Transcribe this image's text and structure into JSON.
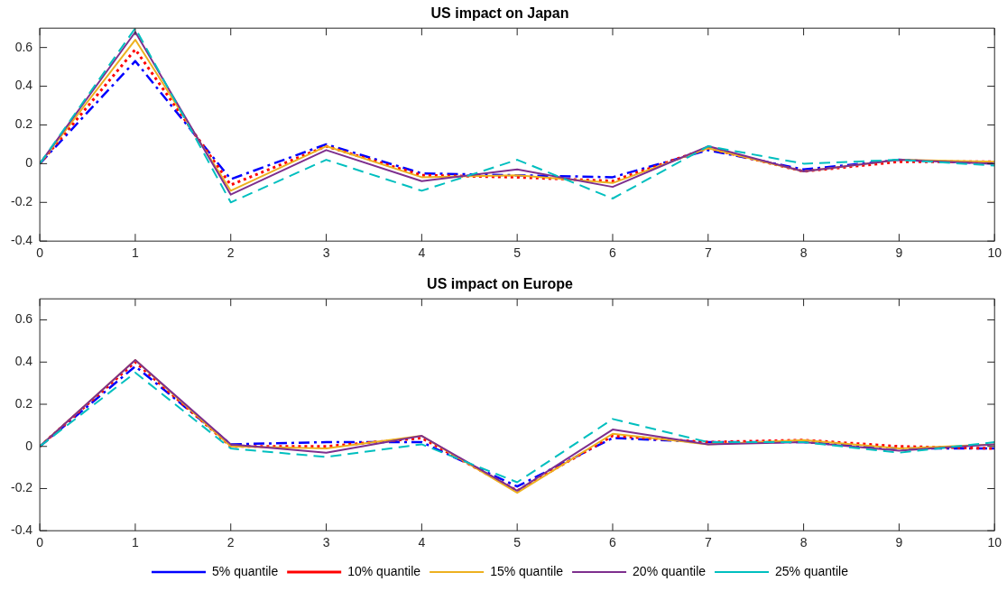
{
  "chart_data": [
    {
      "type": "line",
      "title": "US impact on Japan",
      "x": [
        0,
        1,
        2,
        3,
        4,
        5,
        6,
        7,
        8,
        9,
        10
      ],
      "xlim": [
        0,
        10
      ],
      "xticks": [
        0,
        1,
        2,
        3,
        4,
        5,
        6,
        7,
        8,
        9,
        10
      ],
      "ylim": [
        -0.4,
        0.7
      ],
      "yticks": [
        -0.4,
        -0.2,
        0,
        0.2,
        0.4,
        0.6
      ],
      "grid": false,
      "legend": false,
      "marker": "none",
      "series": [
        {
          "color": "#0000ff",
          "line_style": "dashdot",
          "values": [
            0,
            0.53,
            -0.08,
            0.1,
            -0.05,
            -0.06,
            -0.07,
            0.07,
            -0.03,
            0.02,
            0.0
          ]
        },
        {
          "color": "#ff0000",
          "line_style": "dotted",
          "values": [
            0,
            0.59,
            -0.11,
            0.09,
            -0.06,
            -0.07,
            -0.09,
            0.08,
            -0.04,
            0.01,
            0.01
          ]
        },
        {
          "color": "#edb120",
          "line_style": "solid",
          "values": [
            0,
            0.64,
            -0.14,
            0.09,
            -0.07,
            -0.06,
            -0.1,
            0.08,
            -0.04,
            0.02,
            0.01
          ]
        },
        {
          "color": "#7e2f8e",
          "line_style": "solid",
          "values": [
            0,
            0.68,
            -0.16,
            0.07,
            -0.09,
            -0.03,
            -0.12,
            0.09,
            -0.04,
            0.02,
            0.0
          ]
        },
        {
          "color": "#00bfbf",
          "line_style": "dashed",
          "values": [
            0,
            0.7,
            -0.2,
            0.02,
            -0.14,
            0.02,
            -0.18,
            0.09,
            0.0,
            0.02,
            -0.01
          ]
        }
      ]
    },
    {
      "type": "line",
      "title": "US impact on Europe",
      "x": [
        0,
        1,
        2,
        3,
        4,
        5,
        6,
        7,
        8,
        9,
        10
      ],
      "xlim": [
        0,
        10
      ],
      "xticks": [
        0,
        1,
        2,
        3,
        4,
        5,
        6,
        7,
        8,
        9,
        10
      ],
      "ylim": [
        -0.4,
        0.7
      ],
      "yticks": [
        -0.4,
        -0.2,
        0,
        0.2,
        0.4,
        0.6
      ],
      "grid": false,
      "legend": "bottom",
      "marker": "none",
      "series": [
        {
          "name": "5% quantile",
          "color": "#0000ff",
          "line_style": "dashdot",
          "values": [
            0,
            0.38,
            0.01,
            0.02,
            0.02,
            -0.19,
            0.04,
            0.02,
            0.02,
            -0.01,
            -0.01
          ]
        },
        {
          "name": "10% quantile",
          "color": "#ff0000",
          "line_style": "dotted",
          "values": [
            0,
            0.4,
            0.0,
            0.0,
            0.04,
            -0.21,
            0.05,
            0.02,
            0.03,
            0.0,
            -0.01
          ]
        },
        {
          "name": "15% quantile",
          "color": "#edb120",
          "line_style": "solid",
          "values": [
            0,
            0.41,
            0.0,
            -0.01,
            0.05,
            -0.22,
            0.06,
            0.01,
            0.03,
            -0.01,
            0.01
          ]
        },
        {
          "name": "20% quantile",
          "color": "#7e2f8e",
          "line_style": "solid",
          "values": [
            0,
            0.41,
            0.01,
            -0.03,
            0.05,
            -0.21,
            0.08,
            0.01,
            0.02,
            -0.02,
            0.01
          ]
        },
        {
          "name": "25% quantile",
          "color": "#00bfbf",
          "line_style": "dashed",
          "values": [
            0,
            0.35,
            -0.01,
            -0.05,
            0.01,
            -0.17,
            0.13,
            0.02,
            0.02,
            -0.03,
            0.02
          ]
        }
      ]
    }
  ]
}
